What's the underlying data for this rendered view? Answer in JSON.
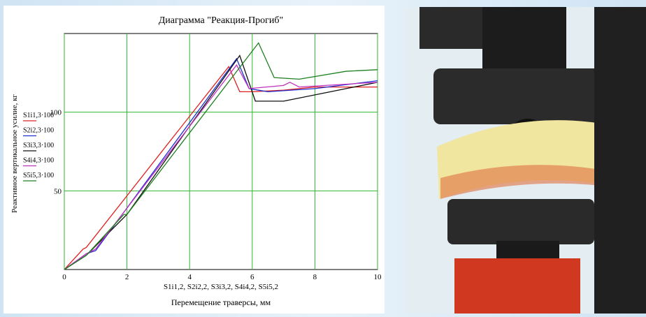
{
  "chart_data": {
    "type": "line",
    "title": "Диаграмма \"Реакция-Прогиб\"",
    "x_label": "Перемещение траверсы, мм",
    "x_annotation": "S1i1,2, S2i2,2, S3i3,2, S4i4,2, S5i5,2",
    "y_label": "Реактивное вертикальное усилие, кг",
    "xlim": [
      0,
      10
    ],
    "xticks": [
      0,
      2,
      4,
      6,
      8,
      10
    ],
    "ylim": [
      0,
      150
    ],
    "yticks": [
      50,
      100
    ],
    "grid": true,
    "series": [
      {
        "name": "S1i1,3·100",
        "color": "#e02020",
        "x": [
          0,
          0.6,
          0.7,
          5.25,
          5.6,
          6,
          7,
          8,
          10
        ],
        "values": [
          0,
          13,
          14,
          129,
          113,
          113,
          114,
          116,
          116
        ]
      },
      {
        "name": "S2i2,3·100",
        "color": "#2030d0",
        "x": [
          0,
          0.7,
          1,
          5.5,
          5.9,
          6.5,
          8,
          10
        ],
        "values": [
          0,
          10,
          12,
          134,
          115,
          113,
          115,
          120
        ]
      },
      {
        "name": "S3i3,3·100",
        "color": "#101010",
        "x": [
          0,
          0.7,
          2,
          5.6,
          6.1,
          7,
          8,
          10
        ],
        "values": [
          0,
          9,
          35,
          136,
          107,
          107,
          111,
          119
        ]
      },
      {
        "name": "S4i4,3·100",
        "color": "#c030c0",
        "x": [
          0,
          0.7,
          1,
          5.5,
          5.9,
          7,
          7.2,
          7.5,
          10
        ],
        "values": [
          0,
          10,
          13,
          130,
          115,
          117,
          119,
          116,
          119
        ]
      },
      {
        "name": "S5i5,3·100",
        "color": "#208020",
        "x": [
          0,
          0.7,
          1.9,
          2,
          6.2,
          6.7,
          7.5,
          9,
          10
        ],
        "values": [
          0,
          9,
          35,
          35,
          144,
          122,
          121,
          126,
          127
        ]
      }
    ]
  }
}
